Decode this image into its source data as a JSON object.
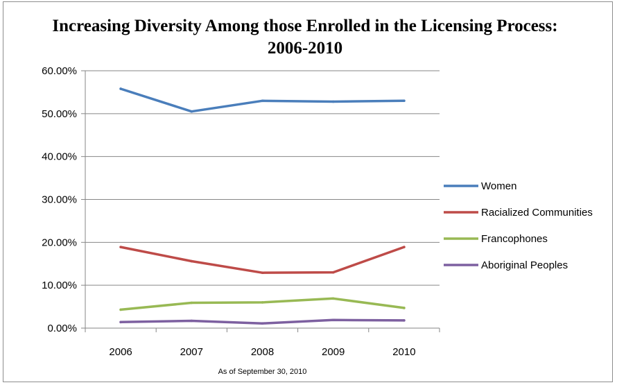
{
  "chart_data": {
    "type": "line",
    "title": "Increasing Diversity Among those Enrolled in the Licensing Process: 2006-2010",
    "categories": [
      "2006",
      "2007",
      "2008",
      "2009",
      "2010"
    ],
    "ylim": [
      0,
      60
    ],
    "yticks": [
      "0.00%",
      "10.00%",
      "20.00%",
      "30.00%",
      "40.00%",
      "50.00%",
      "60.00%"
    ],
    "grid": true,
    "legend_position": "right",
    "note": "As of September 30, 2010",
    "series": [
      {
        "name": "Women",
        "color": "#4a7ebb",
        "values": [
          55.8,
          50.5,
          53.0,
          52.8,
          53.0
        ]
      },
      {
        "name": "Racialized Communities",
        "color": "#be4b48",
        "values": [
          18.9,
          15.6,
          12.9,
          13.0,
          18.9
        ]
      },
      {
        "name": "Francophones",
        "color": "#98b954",
        "values": [
          4.3,
          5.9,
          6.0,
          6.9,
          4.7
        ]
      },
      {
        "name": "Aboriginal Peoples",
        "color": "#7d60a0",
        "values": [
          1.4,
          1.7,
          1.1,
          1.9,
          1.8
        ]
      }
    ]
  }
}
